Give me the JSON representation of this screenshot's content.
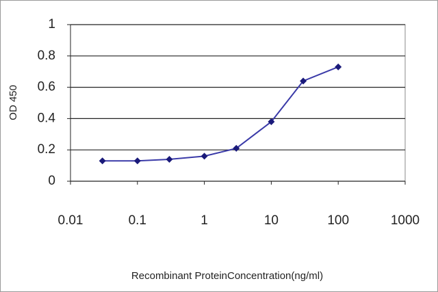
{
  "chart_data": {
    "type": "line",
    "x_label": "Recombinant ProteinConcentration(ng/ml)",
    "y_label": "OD 450",
    "x": [
      0.03,
      0.1,
      0.3,
      1,
      3,
      10,
      30,
      100
    ],
    "series": [
      {
        "color": "#3a3aa8",
        "values": [
          0.13,
          0.13,
          0.14,
          0.16,
          0.21,
          0.38,
          0.64,
          0.73
        ]
      }
    ],
    "xlim": [
      0.01,
      1000
    ],
    "xticks": [
      0.01,
      0.1,
      1,
      10,
      100,
      1000
    ],
    "log_x": true,
    "ylim": [
      0,
      1
    ],
    "yticks": [
      0,
      0.2,
      0.4,
      0.6,
      0.8,
      1
    ],
    "grid": true
  }
}
